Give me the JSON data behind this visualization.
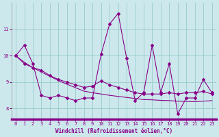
{
  "xlabel": "Windchill (Refroidissement éolien,°C)",
  "background_color": "#cce8ec",
  "line_color": "#880088",
  "grid_color": "#99cccc",
  "axis_bar_color": "#880088",
  "x": [
    0,
    1,
    2,
    3,
    4,
    5,
    6,
    7,
    8,
    9,
    10,
    11,
    12,
    13,
    14,
    15,
    16,
    17,
    18,
    19,
    20,
    21,
    22,
    23
  ],
  "series1": [
    10.0,
    10.4,
    9.7,
    8.5,
    8.4,
    8.5,
    8.4,
    8.3,
    8.4,
    8.4,
    10.05,
    11.2,
    11.6,
    9.9,
    8.3,
    8.6,
    10.4,
    8.6,
    9.7,
    7.8,
    8.4,
    8.4,
    9.1,
    8.6
  ],
  "series2": [
    10.0,
    9.7,
    9.55,
    9.45,
    9.25,
    9.1,
    9.0,
    8.9,
    8.8,
    8.85,
    9.05,
    8.9,
    8.8,
    8.7,
    8.6,
    8.55,
    8.55,
    8.55,
    8.6,
    8.55,
    8.6,
    8.6,
    8.65,
    8.55
  ],
  "series3": [
    10.0,
    9.75,
    9.55,
    9.38,
    9.22,
    9.06,
    8.92,
    8.79,
    8.66,
    8.6,
    8.55,
    8.5,
    8.46,
    8.42,
    8.38,
    8.34,
    8.33,
    8.31,
    8.3,
    8.28,
    8.27,
    8.26,
    8.28,
    8.3
  ],
  "ylim": [
    7.6,
    12.0
  ],
  "yticks": [
    8,
    9,
    10,
    11
  ],
  "xlim": [
    -0.5,
    23.5
  ],
  "xticks": [
    0,
    1,
    2,
    3,
    4,
    5,
    6,
    7,
    8,
    9,
    10,
    11,
    12,
    13,
    14,
    15,
    16,
    17,
    18,
    19,
    20,
    21,
    22,
    23
  ],
  "marker_size": 2.0,
  "line_width": 0.8,
  "tick_label_size": 5.0,
  "xlabel_size": 5.5
}
